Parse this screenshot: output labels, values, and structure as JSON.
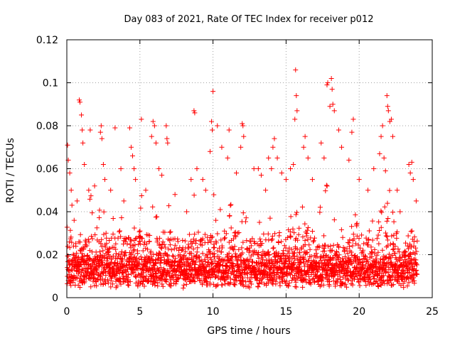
{
  "chart_data": {
    "type": "scatter",
    "title": "Day 083 of 2021, Rate Of TEC Index for receiver p012",
    "xlabel": "GPS time / hours",
    "ylabel": "ROTI / TECUs",
    "xlim": [
      0,
      25
    ],
    "ylim": [
      0,
      0.12
    ],
    "xticks": [
      0,
      5,
      10,
      15,
      20,
      25
    ],
    "xtick_labels": [
      "0",
      "5",
      "10",
      "15",
      "20",
      "25"
    ],
    "yticks": [
      0,
      0.02,
      0.04,
      0.06,
      0.08,
      0.1,
      0.12
    ],
    "ytick_labels": [
      "0",
      "0.02",
      "0.04",
      "0.06",
      "0.08",
      "0.1",
      "0.12"
    ],
    "grid": true,
    "marker": "plus",
    "color": "#ff0000",
    "series": [
      {
        "name": "ROTI",
        "points": [
          [
            0.05,
            0.071
          ],
          [
            0.1,
            0.064
          ],
          [
            0.2,
            0.058
          ],
          [
            0.3,
            0.05
          ],
          [
            0.35,
            0.043
          ],
          [
            0.5,
            0.036
          ],
          [
            0.7,
            0.045
          ],
          [
            0.85,
            0.092
          ],
          [
            0.9,
            0.091
          ],
          [
            1.0,
            0.085
          ],
          [
            1.05,
            0.078
          ],
          [
            1.1,
            0.072
          ],
          [
            1.2,
            0.062
          ],
          [
            1.5,
            0.05
          ],
          [
            1.6,
            0.078
          ],
          [
            1.9,
            0.052
          ],
          [
            2.3,
            0.077
          ],
          [
            2.35,
            0.08
          ],
          [
            2.4,
            0.074
          ],
          [
            2.5,
            0.062
          ],
          [
            2.6,
            0.055
          ],
          [
            3.0,
            0.05
          ],
          [
            3.3,
            0.079
          ],
          [
            3.7,
            0.06
          ],
          [
            3.9,
            0.045
          ],
          [
            4.3,
            0.079
          ],
          [
            4.4,
            0.07
          ],
          [
            4.5,
            0.066
          ],
          [
            4.6,
            0.06
          ],
          [
            4.7,
            0.055
          ],
          [
            5.1,
            0.083
          ],
          [
            5.4,
            0.05
          ],
          [
            5.8,
            0.075
          ],
          [
            5.9,
            0.082
          ],
          [
            6.0,
            0.08
          ],
          [
            6.1,
            0.072
          ],
          [
            6.3,
            0.06
          ],
          [
            6.5,
            0.057
          ],
          [
            6.8,
            0.08
          ],
          [
            6.85,
            0.074
          ],
          [
            6.9,
            0.072
          ],
          [
            7.4,
            0.048
          ],
          [
            8.2,
            0.04
          ],
          [
            8.5,
            0.055
          ],
          [
            8.7,
            0.087
          ],
          [
            8.75,
            0.086
          ],
          [
            8.9,
            0.06
          ],
          [
            9.3,
            0.055
          ],
          [
            9.5,
            0.05
          ],
          [
            9.8,
            0.068
          ],
          [
            9.9,
            0.082
          ],
          [
            9.95,
            0.078
          ],
          [
            10.0,
            0.096
          ],
          [
            10.3,
            0.08
          ],
          [
            10.6,
            0.07
          ],
          [
            11.0,
            0.065
          ],
          [
            11.1,
            0.078
          ],
          [
            11.6,
            0.058
          ],
          [
            11.9,
            0.07
          ],
          [
            12.0,
            0.081
          ],
          [
            12.05,
            0.08
          ],
          [
            12.1,
            0.075
          ],
          [
            12.8,
            0.06
          ],
          [
            13.1,
            0.06
          ],
          [
            13.3,
            0.057
          ],
          [
            13.6,
            0.05
          ],
          [
            13.8,
            0.065
          ],
          [
            14.0,
            0.06
          ],
          [
            14.1,
            0.07
          ],
          [
            14.2,
            0.074
          ],
          [
            14.4,
            0.065
          ],
          [
            14.7,
            0.058
          ],
          [
            15.0,
            0.055
          ],
          [
            15.3,
            0.06
          ],
          [
            15.5,
            0.062
          ],
          [
            15.6,
            0.083
          ],
          [
            15.65,
            0.106
          ],
          [
            15.7,
            0.094
          ],
          [
            15.75,
            0.087
          ],
          [
            16.2,
            0.07
          ],
          [
            16.3,
            0.075
          ],
          [
            16.5,
            0.065
          ],
          [
            16.8,
            0.055
          ],
          [
            17.4,
            0.072
          ],
          [
            17.6,
            0.065
          ],
          [
            17.8,
            0.099
          ],
          [
            17.85,
            0.1
          ],
          [
            18.0,
            0.089
          ],
          [
            18.1,
            0.102
          ],
          [
            18.15,
            0.097
          ],
          [
            18.2,
            0.09
          ],
          [
            18.3,
            0.087
          ],
          [
            18.6,
            0.078
          ],
          [
            18.8,
            0.07
          ],
          [
            19.3,
            0.064
          ],
          [
            19.5,
            0.077
          ],
          [
            19.6,
            0.083
          ],
          [
            20.0,
            0.055
          ],
          [
            20.6,
            0.05
          ],
          [
            21.0,
            0.06
          ],
          [
            21.4,
            0.067
          ],
          [
            21.5,
            0.075
          ],
          [
            21.6,
            0.08
          ],
          [
            21.7,
            0.065
          ],
          [
            21.8,
            0.059
          ],
          [
            21.9,
            0.094
          ],
          [
            21.95,
            0.089
          ],
          [
            22.0,
            0.087
          ],
          [
            22.1,
            0.082
          ],
          [
            22.2,
            0.083
          ],
          [
            22.3,
            0.075
          ],
          [
            22.6,
            0.05
          ],
          [
            22.8,
            0.04
          ],
          [
            23.4,
            0.062
          ],
          [
            23.5,
            0.058
          ],
          [
            23.6,
            0.063
          ],
          [
            23.7,
            0.055
          ],
          [
            23.9,
            0.045
          ]
        ]
      }
    ]
  }
}
